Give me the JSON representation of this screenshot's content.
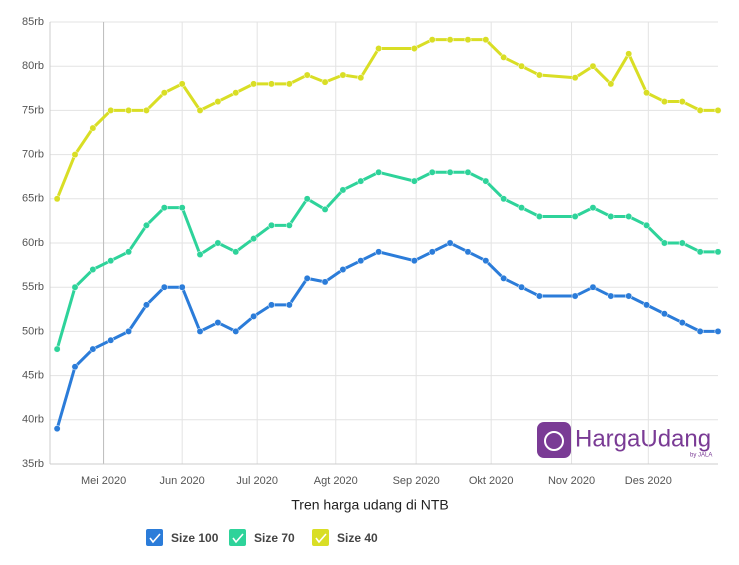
{
  "chart_data": {
    "type": "line",
    "x_title": "Tren harga udang di NTB",
    "x": [
      0,
      1,
      2,
      3,
      4,
      5,
      6,
      7,
      8,
      9,
      10,
      11,
      12,
      13,
      14,
      15,
      16,
      17,
      18,
      20,
      21,
      22,
      23,
      24,
      25,
      26,
      27,
      29,
      30,
      31,
      32,
      33,
      34,
      35,
      36,
      37
    ],
    "xlim": [
      -0.4,
      37
    ],
    "xticks": [
      {
        "value": 2.6,
        "label": "Mei 2020"
      },
      {
        "value": 7,
        "label": "Jun 2020"
      },
      {
        "value": 11.2,
        "label": "Jul 2020"
      },
      {
        "value": 15.6,
        "label": "Agt 2020"
      },
      {
        "value": 20.1,
        "label": "Sep 2020"
      },
      {
        "value": 24.3,
        "label": "Okt 2020"
      },
      {
        "value": 28.8,
        "label": "Nov 2020"
      },
      {
        "value": 33.1,
        "label": "Des 2020"
      }
    ],
    "ylim": [
      35,
      85
    ],
    "yticks": [
      {
        "value": 35,
        "label": "35rb"
      },
      {
        "value": 40,
        "label": "40rb"
      },
      {
        "value": 45,
        "label": "45rb"
      },
      {
        "value": 50,
        "label": "50rb"
      },
      {
        "value": 55,
        "label": "55rb"
      },
      {
        "value": 60,
        "label": "60rb"
      },
      {
        "value": 65,
        "label": "65rb"
      },
      {
        "value": 70,
        "label": "70rb"
      },
      {
        "value": 75,
        "label": "75rb"
      },
      {
        "value": 80,
        "label": "80rb"
      },
      {
        "value": 85,
        "label": "85rb"
      }
    ],
    "grid": true,
    "series": [
      {
        "name": "Size 100",
        "color": "#2b7cd9",
        "values": [
          39,
          46,
          48,
          49,
          50,
          53,
          55,
          55,
          50,
          51,
          50,
          51.7,
          53,
          53,
          56,
          55.6,
          57,
          58,
          59,
          58,
          59,
          60,
          59,
          58,
          56,
          55,
          54,
          54,
          55,
          54,
          54,
          53,
          52,
          51,
          50,
          50
        ]
      },
      {
        "name": "Size 70",
        "color": "#2ed39a",
        "values": [
          48,
          55,
          57,
          58,
          59,
          62,
          64,
          64,
          58.7,
          60,
          59,
          60.5,
          62,
          62,
          65,
          63.8,
          66,
          67,
          68,
          67,
          68,
          68,
          68,
          67,
          65,
          64,
          63,
          63,
          64,
          63,
          63,
          62,
          60,
          60,
          59,
          59
        ]
      },
      {
        "name": "Size 40",
        "color": "#d9de25",
        "values": [
          65,
          70,
          73,
          75,
          75,
          75,
          77,
          78,
          75,
          76,
          77,
          78,
          78,
          78,
          79,
          78.2,
          79,
          78.7,
          82,
          82,
          83,
          83,
          83,
          83,
          81,
          80,
          79,
          78.7,
          80,
          78,
          81.4,
          77,
          76,
          76,
          75,
          75
        ]
      }
    ]
  },
  "logo": {
    "text": "HargaUdang",
    "sub": "by JALA"
  }
}
